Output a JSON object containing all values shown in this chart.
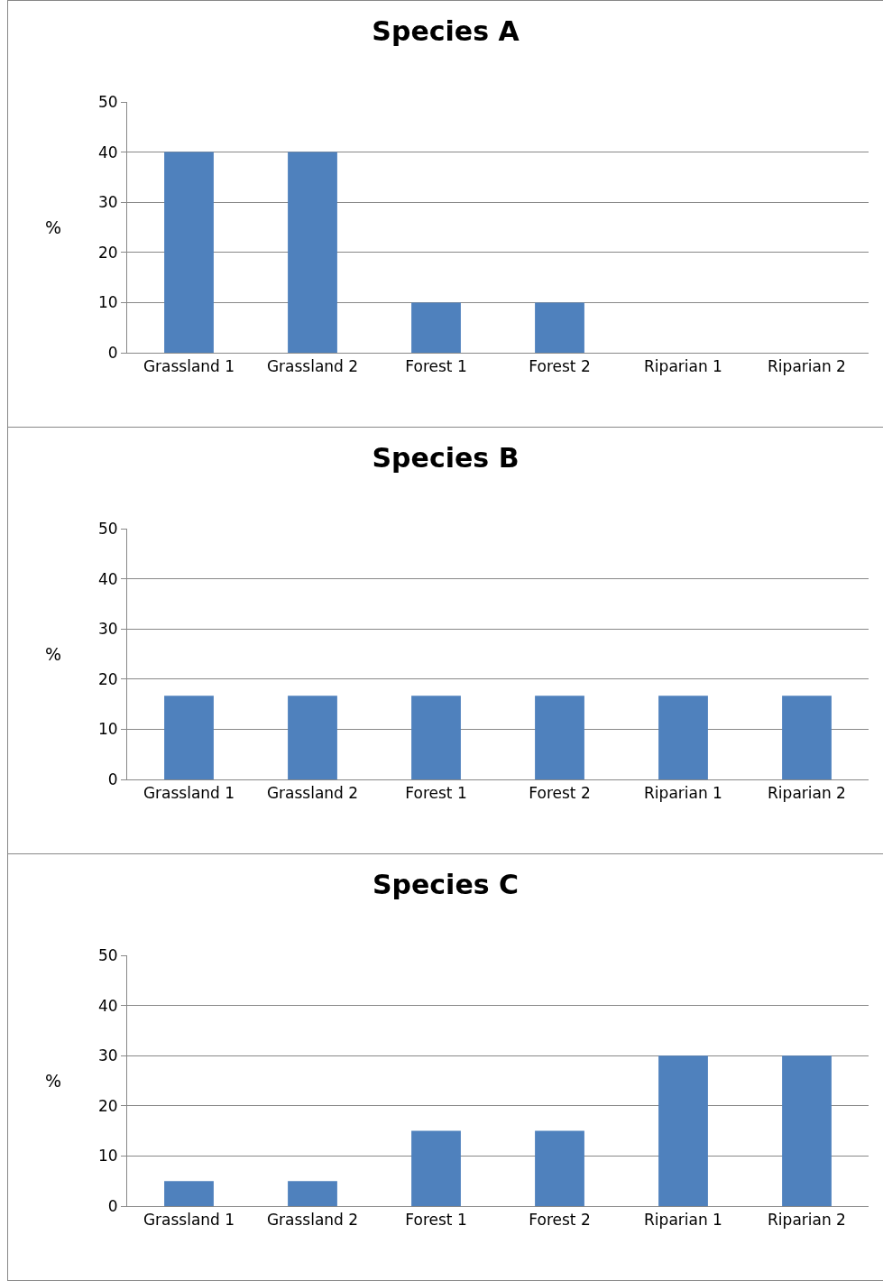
{
  "chart_data": [
    {
      "type": "bar",
      "title": "Species A",
      "ylabel": "%",
      "categories": [
        "Grassland 1",
        "Grassland 2",
        "Forest 1",
        "Forest 2",
        "Riparian 1",
        "Riparian 2"
      ],
      "values": [
        40,
        40,
        10,
        10,
        0,
        0
      ],
      "color": "#4f81bd",
      "ylim": [
        0,
        50
      ],
      "yticks": [
        0,
        10,
        20,
        30,
        40,
        50
      ],
      "grid": "y"
    },
    {
      "type": "bar",
      "title": "Species B",
      "ylabel": "%",
      "categories": [
        "Grassland 1",
        "Grassland 2",
        "Forest 1",
        "Forest 2",
        "Riparian 1",
        "Riparian 2"
      ],
      "values": [
        16.7,
        16.7,
        16.7,
        16.7,
        16.7,
        16.7
      ],
      "color": "#4f81bd",
      "ylim": [
        0,
        50
      ],
      "yticks": [
        0,
        10,
        20,
        30,
        40,
        50
      ],
      "grid": "y"
    },
    {
      "type": "bar",
      "title": "Species C",
      "ylabel": "%",
      "categories": [
        "Grassland 1",
        "Grassland 2",
        "Forest 1",
        "Forest 2",
        "Riparian 1",
        "Riparian 2"
      ],
      "values": [
        5,
        5,
        15,
        15,
        30,
        30
      ],
      "color": "#4f81bd",
      "ylim": [
        0,
        50
      ],
      "yticks": [
        0,
        10,
        20,
        30,
        40,
        50
      ],
      "grid": "y"
    }
  ]
}
